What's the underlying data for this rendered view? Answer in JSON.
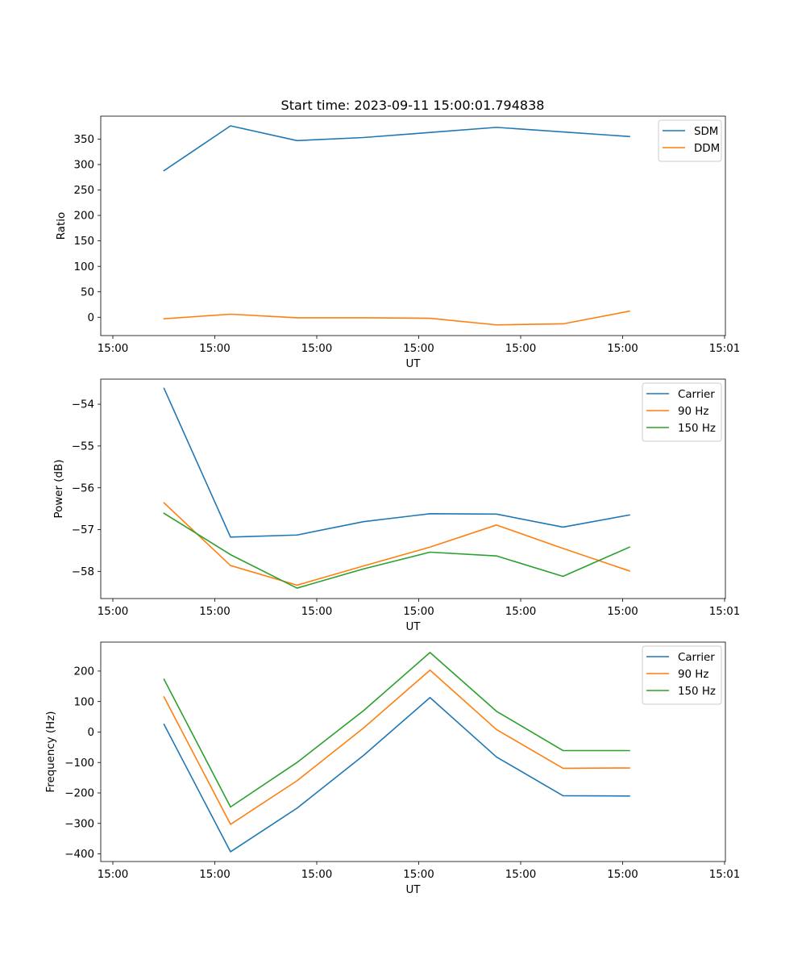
{
  "chart_data": [
    {
      "type": "line",
      "title": "Start time: 2023-09-11 15:00:01.794838",
      "xlabel": "UT",
      "ylabel": "Ratio",
      "x_tick_labels": [
        "15:00",
        "15:00",
        "15:00",
        "15:00",
        "15:00",
        "15:00",
        "15:01"
      ],
      "y_ticks": [
        0,
        50,
        100,
        150,
        200,
        250,
        300,
        350
      ],
      "ylim": [
        -36,
        395
      ],
      "legend_position": "top-right",
      "series": [
        {
          "name": "SDM",
          "color": "#1f77b4",
          "values": [
            288,
            376,
            347,
            353,
            363,
            373,
            364,
            355
          ]
        },
        {
          "name": "DDM",
          "color": "#ff7f0e",
          "values": [
            -3,
            6,
            -1,
            -1,
            -2,
            -15,
            -13,
            12
          ]
        }
      ]
    },
    {
      "type": "line",
      "title": "",
      "xlabel": "UT",
      "ylabel": "Power (dB)",
      "x_tick_labels": [
        "15:00",
        "15:00",
        "15:00",
        "15:00",
        "15:00",
        "15:00",
        "15:01"
      ],
      "y_ticks": [
        -58,
        -57,
        -56,
        -55,
        -54
      ],
      "ylim": [
        -58.65,
        -53.4
      ],
      "legend_position": "top-right",
      "series": [
        {
          "name": "Carrier",
          "color": "#1f77b4",
          "values": [
            -53.62,
            -57.18,
            -57.13,
            -56.81,
            -56.62,
            -56.63,
            -56.94,
            -56.65
          ]
        },
        {
          "name": "90 Hz",
          "color": "#ff7f0e",
          "values": [
            -56.36,
            -57.86,
            -58.33,
            -57.87,
            -57.42,
            -56.89,
            -57.45,
            -57.99
          ]
        },
        {
          "name": "150 Hz",
          "color": "#2ca02c",
          "values": [
            -56.61,
            -57.6,
            -58.4,
            -57.94,
            -57.54,
            -57.63,
            -58.12,
            -57.42
          ]
        }
      ]
    },
    {
      "type": "line",
      "title": "",
      "xlabel": "UT",
      "ylabel": "Frequency (Hz)",
      "x_tick_labels": [
        "15:00",
        "15:00",
        "15:00",
        "15:00",
        "15:00",
        "15:00",
        "15:01"
      ],
      "y_ticks": [
        -400,
        -300,
        -200,
        -100,
        0,
        100,
        200
      ],
      "ylim": [
        -425,
        295
      ],
      "legend_position": "top-right",
      "series": [
        {
          "name": "Carrier",
          "color": "#1f77b4",
          "values": [
            25,
            -393,
            -250,
            -77,
            113,
            -82,
            -209,
            -210
          ]
        },
        {
          "name": "90 Hz",
          "color": "#ff7f0e",
          "values": [
            115,
            -303,
            -160,
            13,
            203,
            8,
            -119,
            -118
          ]
        },
        {
          "name": "150 Hz",
          "color": "#2ca02c",
          "values": [
            173,
            -246,
            -100,
            70,
            261,
            68,
            -61,
            -61
          ]
        }
      ]
    }
  ]
}
